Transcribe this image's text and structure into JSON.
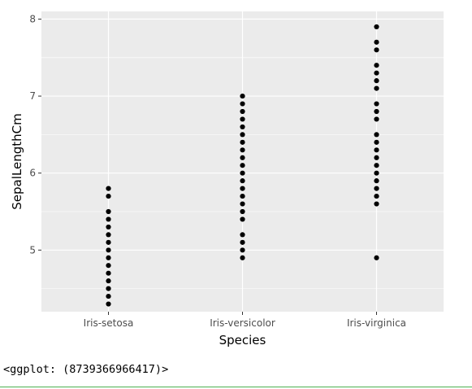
{
  "chart_data": {
    "type": "scatter",
    "title": "",
    "xlabel": "Species",
    "ylabel": "SepalLengthCm",
    "categories": [
      "Iris-setosa",
      "Iris-versicolor",
      "Iris-virginica"
    ],
    "ylim": [
      4.2,
      8.1
    ],
    "yticks": [
      5,
      6,
      7,
      8
    ],
    "grid": true,
    "point_color": "#000000",
    "panel_color": "#ebebeb",
    "series": [
      {
        "category": "Iris-setosa",
        "values": [
          4.3,
          4.4,
          4.5,
          4.6,
          4.7,
          4.8,
          4.9,
          5.0,
          5.1,
          5.2,
          5.3,
          5.4,
          5.5,
          5.7,
          5.8
        ]
      },
      {
        "category": "Iris-versicolor",
        "values": [
          4.9,
          5.0,
          5.1,
          5.2,
          5.4,
          5.5,
          5.6,
          5.7,
          5.8,
          5.9,
          6.0,
          6.1,
          6.2,
          6.3,
          6.4,
          6.5,
          6.6,
          6.7,
          6.8,
          6.9,
          7.0
        ]
      },
      {
        "category": "Iris-virginica",
        "values": [
          4.9,
          5.6,
          5.7,
          5.8,
          5.9,
          6.0,
          6.1,
          6.2,
          6.3,
          6.4,
          6.5,
          6.7,
          6.8,
          6.9,
          7.1,
          7.2,
          7.3,
          7.4,
          7.6,
          7.7,
          7.9
        ]
      }
    ]
  },
  "output": {
    "repr_text": "<ggplot: (8739366966417)>"
  }
}
